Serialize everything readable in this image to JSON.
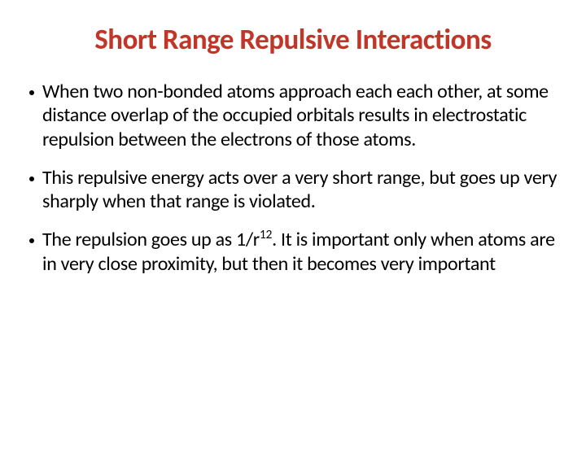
{
  "title": "Short Range Repulsive Interactions",
  "bullets": [
    {
      "html": "When two non-bonded atoms approach each each other, at some distance overlap of the occupied orbitals results in electrostatic repulsion between the electrons of those atoms."
    },
    {
      "html": "This repulsive energy acts over a very short range, but goes up very sharply when that range is violated."
    },
    {
      "html": "The repulsion goes up as 1/r<sup>12</sup>. It is important only when atoms are in very close proximity, but then it becomes very important"
    }
  ],
  "colors": {
    "title": "#c0372a",
    "text": "#000000",
    "background": "#ffffff"
  },
  "typography": {
    "title_fontsize": 35,
    "body_fontsize": 24,
    "title_weight": 700,
    "body_weight": 400
  }
}
